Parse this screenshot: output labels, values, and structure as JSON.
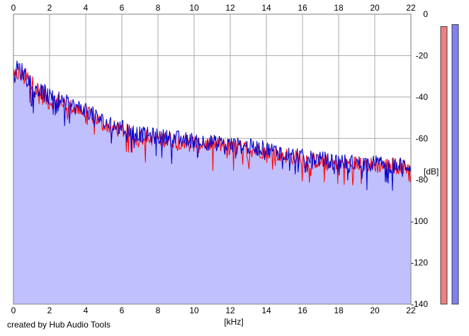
{
  "credit": "created by Hub Audio Tools",
  "chart_data": {
    "type": "line",
    "xlabel": "[kHz]",
    "ylabel": "[dB]",
    "xlim": [
      0,
      22
    ],
    "ylim": [
      -140,
      0
    ],
    "x_ticks": [
      0,
      2,
      4,
      6,
      8,
      10,
      12,
      14,
      16,
      18,
      20,
      22
    ],
    "y_ticks": [
      0,
      -20,
      -40,
      -60,
      -80,
      -100,
      -120,
      -140
    ],
    "grid": true,
    "fill_below_color": "#c0c0ff",
    "series": [
      {
        "color": "#ff0000",
        "x": [
          0.0,
          0.25,
          0.5,
          0.75,
          1.0,
          1.5,
          2.0,
          2.5,
          3.0,
          3.5,
          4.0,
          4.5,
          5.0,
          5.5,
          6.0,
          7.0,
          8.0,
          9.0,
          10.0,
          11.0,
          12.0,
          13.0,
          14.0,
          15.0,
          16.0,
          17.0,
          18.0,
          19.0,
          20.0,
          21.0,
          22.0
        ],
        "y": [
          -33,
          -28,
          -30,
          -31,
          -34,
          -38,
          -42,
          -42,
          -44,
          -46,
          -48,
          -50,
          -53,
          -55,
          -56,
          -59,
          -60,
          -61,
          -62,
          -63,
          -64,
          -65,
          -66,
          -68,
          -70,
          -71,
          -72,
          -72,
          -73,
          -73,
          -74
        ]
      },
      {
        "color": "#0000cc",
        "x": [
          0.0,
          0.25,
          0.5,
          0.75,
          1.0,
          1.5,
          2.0,
          2.5,
          3.0,
          3.5,
          4.0,
          4.5,
          5.0,
          5.5,
          6.0,
          7.0,
          8.0,
          9.0,
          10.0,
          11.0,
          12.0,
          13.0,
          14.0,
          15.0,
          16.0,
          17.0,
          18.0,
          19.0,
          20.0,
          21.0,
          22.0
        ],
        "y": [
          -30,
          -26,
          -28,
          -30,
          -33,
          -37,
          -40,
          -41,
          -43,
          -45,
          -46,
          -49,
          -52,
          -54,
          -55,
          -58,
          -59,
          -60,
          -61,
          -62,
          -63,
          -64,
          -65,
          -67,
          -69,
          -70,
          -71,
          -72,
          -72,
          -73,
          -73
        ]
      }
    ],
    "level_meters": [
      {
        "color": "#f08080",
        "top_db": -6
      },
      {
        "color": "#8080f0",
        "top_db": -5
      }
    ]
  }
}
